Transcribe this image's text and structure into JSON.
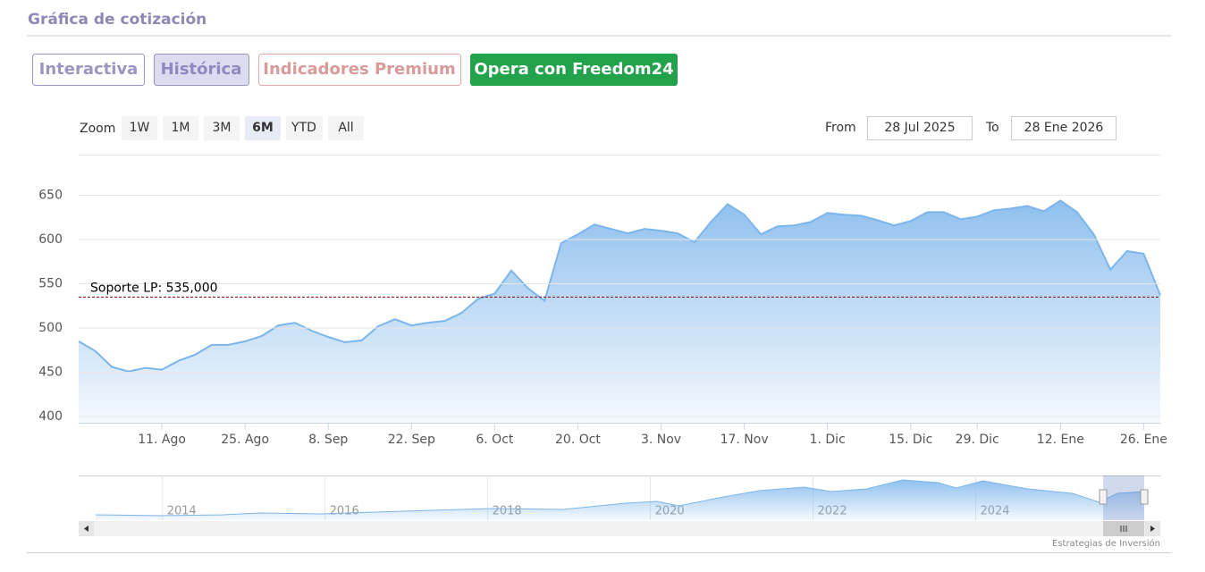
{
  "header": {
    "title": "Gráfica de cotización"
  },
  "tabs": [
    "Interactiva",
    "Histórica",
    "Indicadores Premium",
    "Opera con Freedom24"
  ],
  "zoom": {
    "label": "Zoom",
    "buttons": [
      "1W",
      "1M",
      "3M",
      "6M",
      "YTD",
      "All"
    ],
    "from_label": "From",
    "from": "28 Jul 2025",
    "to_label": "To",
    "to": "28 Ene 2026"
  },
  "chart_data": [
    {
      "type": "area",
      "categories": [
        null,
        null,
        null,
        null,
        null,
        "11. Ago",
        null,
        null,
        null,
        null,
        "25. Ago",
        null,
        null,
        null,
        null,
        "8. Sep",
        null,
        null,
        null,
        null,
        "22. Sep",
        null,
        null,
        null,
        null,
        "6. Oct",
        null,
        null,
        null,
        null,
        "20. Oct",
        null,
        null,
        null,
        null,
        "3. Nov",
        null,
        null,
        null,
        null,
        "17. Nov",
        null,
        null,
        null,
        null,
        "1. Dic",
        null,
        null,
        null,
        null,
        "15. Dic",
        null,
        null,
        null,
        "29. Dic",
        null,
        null,
        null,
        null,
        "12. Ene",
        null,
        null,
        null,
        null,
        "26. Ene",
        null
      ],
      "values": [
        485,
        474,
        456,
        451,
        455,
        453,
        463,
        470,
        481,
        481,
        485,
        491,
        503,
        506,
        497,
        490,
        484,
        486,
        502,
        510,
        503,
        506,
        508,
        517,
        533,
        539,
        565,
        545,
        531,
        596,
        606,
        617,
        612,
        607,
        612,
        610,
        607,
        597,
        620,
        640,
        628,
        606,
        615,
        616,
        620,
        630,
        628,
        627,
        622,
        616,
        621,
        631,
        631,
        623,
        626,
        633,
        635,
        638,
        632,
        644,
        631,
        606,
        566,
        587,
        584,
        537
      ],
      "color": "#7cb5ec",
      "ylim": [
        393,
        696
      ],
      "yticks": [
        400,
        450,
        500,
        550,
        600,
        650
      ],
      "grid": true,
      "annotations": [
        {
          "label": "Soporte LP: 535,000",
          "value": 535,
          "color": "#8b0000"
        }
      ]
    },
    {
      "type": "area",
      "x": [
        2013.18,
        2013.98,
        2014.75,
        2015.19,
        2015.96,
        2016.95,
        2018.05,
        2018.93,
        2019.7,
        2020.08,
        2020.35,
        2020.9,
        2021.34,
        2021.89,
        2022.22,
        2022.66,
        2023.1,
        2023.54,
        2023.76,
        2024.09,
        2024.64,
        2025.19,
        2025.52,
        2025.74,
        2026.07
      ],
      "values": [
        348,
        340,
        348,
        364,
        356,
        380,
        404,
        396,
        452,
        468,
        428,
        508,
        564,
        596,
        556,
        580,
        660,
        636,
        588,
        652,
        580,
        540,
        460,
        540,
        556
      ],
      "color": "#7cb5ec",
      "xlim": [
        2012.97,
        2026.27
      ],
      "ylim": [
        300,
        700
      ],
      "xticks": [
        2014,
        2016,
        2018,
        2020,
        2022,
        2024
      ],
      "grid": true
    }
  ],
  "credit": "Estrategias de Inversión"
}
